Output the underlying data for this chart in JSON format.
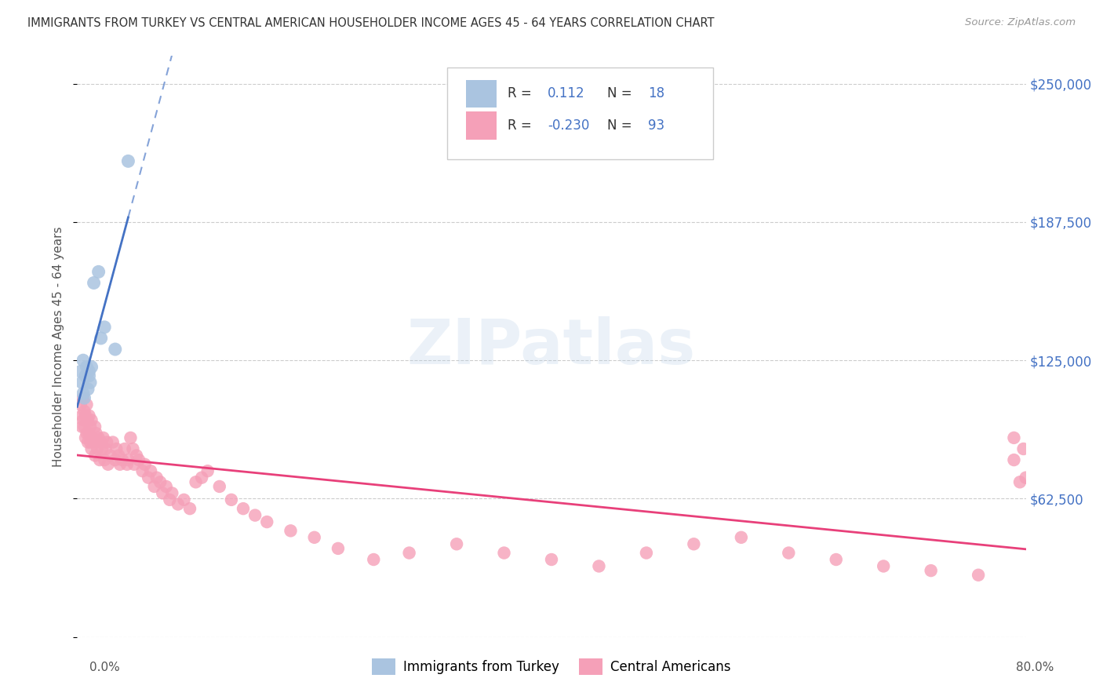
{
  "title": "IMMIGRANTS FROM TURKEY VS CENTRAL AMERICAN HOUSEHOLDER INCOME AGES 45 - 64 YEARS CORRELATION CHART",
  "source": "Source: ZipAtlas.com",
  "ylabel": "Householder Income Ages 45 - 64 years",
  "xlim": [
    0,
    0.8
  ],
  "ylim": [
    0,
    262500
  ],
  "yticks": [
    0,
    62500,
    125000,
    187500,
    250000
  ],
  "ytick_labels_right": [
    "",
    "$62,500",
    "$125,000",
    "$187,500",
    "$250,000"
  ],
  "xticks": [
    0.0,
    0.1,
    0.2,
    0.3,
    0.4,
    0.5,
    0.6,
    0.7,
    0.8
  ],
  "turkey_color": "#aac4e0",
  "central_color": "#f5a0b8",
  "turkey_line_color": "#4472c4",
  "central_line_color": "#e8407a",
  "watermark": "ZIPatlas",
  "legend_text_color": "#333333",
  "legend_value_color": "#4472c4",
  "R_turkey": "0.112",
  "N_turkey": "18",
  "R_central": "-0.230",
  "N_central": "93",
  "turkey_x": [
    0.003,
    0.004,
    0.005,
    0.005,
    0.006,
    0.007,
    0.008,
    0.009,
    0.01,
    0.01,
    0.011,
    0.012,
    0.014,
    0.018,
    0.02,
    0.023,
    0.032,
    0.043
  ],
  "turkey_y": [
    120000,
    115000,
    125000,
    110000,
    108000,
    118000,
    122000,
    112000,
    120000,
    118000,
    115000,
    122000,
    160000,
    165000,
    135000,
    140000,
    130000,
    215000
  ],
  "central_x": [
    0.003,
    0.004,
    0.004,
    0.005,
    0.005,
    0.006,
    0.006,
    0.007,
    0.007,
    0.008,
    0.008,
    0.009,
    0.009,
    0.01,
    0.01,
    0.011,
    0.011,
    0.012,
    0.012,
    0.013,
    0.014,
    0.015,
    0.015,
    0.016,
    0.017,
    0.018,
    0.019,
    0.02,
    0.021,
    0.022,
    0.023,
    0.024,
    0.025,
    0.026,
    0.028,
    0.03,
    0.032,
    0.033,
    0.035,
    0.036,
    0.038,
    0.04,
    0.042,
    0.043,
    0.045,
    0.047,
    0.048,
    0.05,
    0.052,
    0.055,
    0.057,
    0.06,
    0.062,
    0.065,
    0.067,
    0.07,
    0.072,
    0.075,
    0.078,
    0.08,
    0.085,
    0.09,
    0.095,
    0.1,
    0.105,
    0.11,
    0.12,
    0.13,
    0.14,
    0.15,
    0.16,
    0.18,
    0.2,
    0.22,
    0.25,
    0.28,
    0.32,
    0.36,
    0.4,
    0.44,
    0.48,
    0.52,
    0.56,
    0.6,
    0.64,
    0.68,
    0.72,
    0.76,
    0.79,
    0.79,
    0.795,
    0.798,
    0.8
  ],
  "central_y": [
    105000,
    100000,
    95000,
    108000,
    98000,
    102000,
    95000,
    100000,
    90000,
    105000,
    92000,
    98000,
    88000,
    100000,
    92000,
    95000,
    88000,
    98000,
    85000,
    90000,
    88000,
    95000,
    82000,
    92000,
    85000,
    90000,
    80000,
    88000,
    85000,
    90000,
    80000,
    85000,
    88000,
    78000,
    82000,
    88000,
    80000,
    85000,
    82000,
    78000,
    80000,
    85000,
    78000,
    80000,
    90000,
    85000,
    78000,
    82000,
    80000,
    75000,
    78000,
    72000,
    75000,
    68000,
    72000,
    70000,
    65000,
    68000,
    62000,
    65000,
    60000,
    62000,
    58000,
    70000,
    72000,
    75000,
    68000,
    62000,
    58000,
    55000,
    52000,
    48000,
    45000,
    40000,
    35000,
    38000,
    42000,
    38000,
    35000,
    32000,
    38000,
    42000,
    45000,
    38000,
    35000,
    32000,
    30000,
    28000,
    90000,
    80000,
    70000,
    85000,
    72000
  ]
}
